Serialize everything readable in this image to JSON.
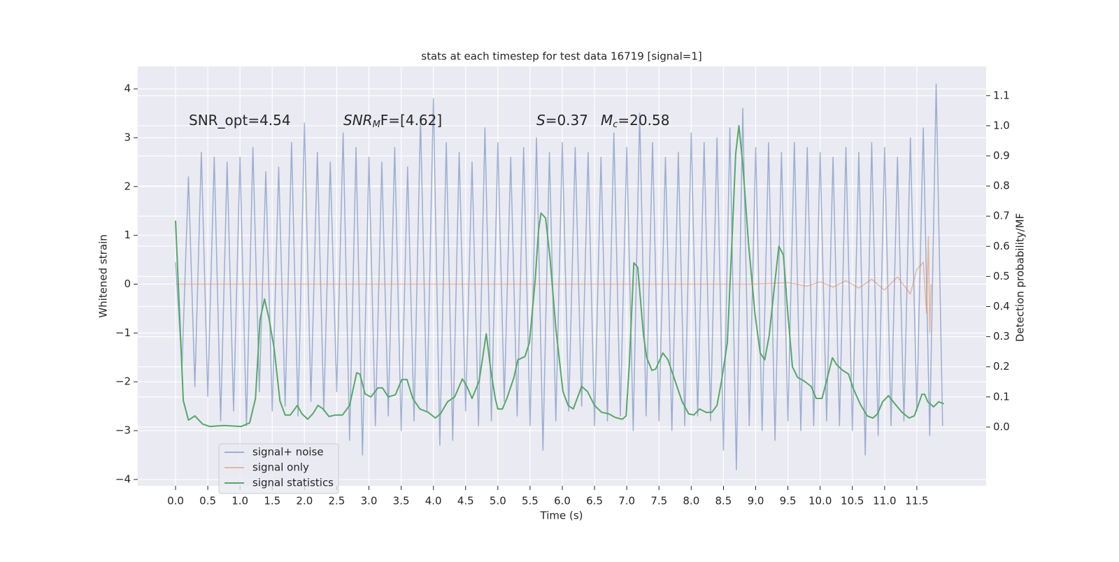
{
  "chart_data": {
    "type": "line",
    "title": "stats at each timestep for test data 16719 [signal=1]",
    "xlabel": "Time (s)",
    "ylabel": "Whitened strain",
    "y2label": "Detection probability/MF",
    "xlim": [
      -0.586,
      12.575
    ],
    "ylim": [
      -4.13,
      4.46
    ],
    "y2lim": [
      -0.195,
      1.197
    ],
    "xticks": [
      {
        "value": 0,
        "label": "0.0"
      },
      0.5,
      {
        "value": 1,
        "label": "1.0"
      },
      1.5,
      {
        "value": 2,
        "label": "2.0"
      },
      2.5,
      {
        "value": 3,
        "label": "3.0"
      },
      3.5,
      {
        "value": 4,
        "label": "4.0"
      },
      4.5,
      {
        "value": 5,
        "label": "5.0"
      },
      5.5,
      {
        "value": 6,
        "label": "6.0"
      },
      6.5,
      {
        "value": 7,
        "label": "7.0"
      },
      7.5,
      {
        "value": 8,
        "label": "8.0"
      },
      8.5,
      {
        "value": 9,
        "label": "9.0"
      },
      9.5,
      {
        "value": 10,
        "label": "10.0"
      },
      10.5,
      {
        "value": 11,
        "label": "11.0"
      },
      11.5
    ],
    "yticks": [
      {
        "value": -4,
        "label": "−4"
      },
      {
        "value": -3,
        "label": "−3"
      },
      {
        "value": -2,
        "label": "−2"
      },
      {
        "value": -1,
        "label": "−1"
      },
      0,
      1,
      2,
      3,
      4
    ],
    "y2ticks": [
      {
        "value": 0,
        "label": "0.0"
      },
      0.1,
      0.2,
      0.3,
      0.4,
      0.5,
      0.6,
      0.7,
      0.8,
      0.9,
      {
        "value": 1,
        "label": "1.0"
      },
      1.1
    ],
    "grid": true,
    "legend": "lower left",
    "annotations": [
      {
        "base": "SNR_opt=4.54",
        "italic": false
      },
      {
        "base": "SNR",
        "sub": "M",
        "rest": "F=[4.62]",
        "italic": true
      },
      {
        "base": "S",
        "rest": "=0.37",
        "italic": true
      },
      {
        "base": "M",
        "sub": "c",
        "rest": "=20.58",
        "italic": true
      }
    ],
    "series": [
      {
        "name": "signal+ noise",
        "color": "#4c72b0",
        "alpha": 0.5,
        "x": [
          0.0,
          0.1,
          0.2,
          0.3,
          0.4,
          0.5,
          0.6,
          0.7,
          0.8,
          0.9,
          1.0,
          1.1,
          1.2,
          1.3,
          1.4,
          1.5,
          1.6,
          1.7,
          1.8,
          1.9,
          2.0,
          2.1,
          2.2,
          2.3,
          2.4,
          2.5,
          2.6,
          2.7,
          2.8,
          2.9,
          3.0,
          3.1,
          3.2,
          3.3,
          3.4,
          3.5,
          3.6,
          3.7,
          3.8,
          3.9,
          4.0,
          4.1,
          4.2,
          4.3,
          4.4,
          4.5,
          4.6,
          4.7,
          4.8,
          4.9,
          5.0,
          5.1,
          5.2,
          5.3,
          5.4,
          5.5,
          5.6,
          5.7,
          5.8,
          5.9,
          6.0,
          6.1,
          6.2,
          6.3,
          6.4,
          6.5,
          6.6,
          6.7,
          6.8,
          6.9,
          7.0,
          7.1,
          7.2,
          7.3,
          7.4,
          7.5,
          7.6,
          7.7,
          7.8,
          7.9,
          8.0,
          8.1,
          8.2,
          8.3,
          8.4,
          8.5,
          8.6,
          8.7,
          8.8,
          8.9,
          9.0,
          9.1,
          9.2,
          9.3,
          9.4,
          9.5,
          9.6,
          9.7,
          9.8,
          9.9,
          10.0,
          10.1,
          10.2,
          10.3,
          10.4,
          10.5,
          10.6,
          10.7,
          10.8,
          10.9,
          11.0,
          11.1,
          11.2,
          11.3,
          11.4,
          11.5,
          11.6,
          11.7,
          11.8,
          11.9
        ],
        "values": [
          0.45,
          -1.7,
          2.2,
          -2.1,
          2.7,
          -2.3,
          2.6,
          -2.8,
          2.5,
          -2.6,
          2.6,
          -2.9,
          2.8,
          -2.2,
          2.3,
          -2.6,
          2.4,
          -2.5,
          2.9,
          -2.7,
          3.3,
          -2.4,
          2.7,
          -2.6,
          2.5,
          -2.2,
          3.1,
          -3.2,
          2.8,
          -3.5,
          2.6,
          -2.9,
          2.5,
          -2.7,
          2.8,
          -3.0,
          2.4,
          -2.8,
          3.4,
          -2.6,
          3.8,
          -3.3,
          2.9,
          -3.2,
          2.7,
          -2.6,
          2.5,
          -2.9,
          3.2,
          -2.8,
          2.9,
          -2.4,
          2.6,
          -2.7,
          2.8,
          -2.9,
          3.0,
          -3.4,
          2.7,
          -2.8,
          2.9,
          -2.6,
          2.8,
          -2.5,
          2.7,
          -2.9,
          2.6,
          -2.8,
          3.1,
          -2.7,
          2.8,
          -3.0,
          3.5,
          -2.7,
          2.9,
          -2.8,
          2.6,
          -3.0,
          2.7,
          -2.9,
          3.1,
          -2.7,
          2.9,
          -2.8,
          3.0,
          -3.4,
          3.2,
          -3.8,
          3.6,
          -2.9,
          2.8,
          -3.0,
          2.9,
          -3.2,
          2.7,
          -2.8,
          2.9,
          -3.0,
          2.8,
          -2.9,
          2.7,
          -2.8,
          2.6,
          -2.9,
          2.8,
          -3.0,
          2.7,
          -3.5,
          2.9,
          -3.1,
          2.8,
          -2.9,
          2.6,
          -2.8,
          3.0,
          -2.6,
          3.2,
          -3.1,
          4.1,
          -2.9
        ]
      },
      {
        "name": "signal only",
        "color": "#dd8452",
        "alpha": 0.5,
        "x": [
          0.0,
          9.0,
          9.5,
          9.8,
          10.0,
          10.2,
          10.4,
          10.6,
          10.8,
          11.0,
          11.2,
          11.4,
          11.5,
          11.6,
          11.65,
          11.68,
          11.7,
          11.72
        ],
        "values": [
          0,
          0,
          0.03,
          -0.04,
          0.05,
          -0.06,
          0.07,
          -0.08,
          0.1,
          -0.12,
          0.15,
          -0.2,
          0.3,
          0.45,
          -0.6,
          0.98,
          -1.0,
          0
        ]
      },
      {
        "name": "signal statistics",
        "color": "#55a868",
        "alpha": 1,
        "axis": "y2",
        "x": [
          0,
          0.12,
          0.2,
          0.3,
          0.42,
          0.53,
          0.75,
          1.02,
          1.15,
          1.24,
          1.31,
          1.38,
          1.45,
          1.53,
          1.62,
          1.7,
          1.78,
          1.89,
          1.96,
          2.05,
          2.13,
          2.21,
          2.29,
          2.38,
          2.48,
          2.59,
          2.7,
          2.81,
          2.86,
          2.94,
          3.03,
          3.14,
          3.21,
          3.3,
          3.41,
          3.51,
          3.59,
          3.68,
          3.79,
          3.92,
          4.03,
          4.11,
          4.22,
          4.33,
          4.45,
          4.52,
          4.6,
          4.71,
          4.82,
          4.89,
          4.96,
          5.0,
          5.07,
          5.14,
          5.25,
          5.31,
          5.42,
          5.49,
          5.58,
          5.63,
          5.67,
          5.74,
          5.81,
          5.9,
          6.01,
          6.09,
          6.17,
          6.3,
          6.39,
          6.5,
          6.61,
          6.72,
          6.82,
          6.93,
          6.99,
          7.04,
          7.11,
          7.17,
          7.26,
          7.31,
          7.39,
          7.45,
          7.56,
          7.64,
          7.75,
          7.86,
          7.96,
          8.04,
          8.13,
          8.23,
          8.32,
          8.4,
          8.47,
          8.56,
          8.63,
          8.69,
          8.74,
          8.8,
          8.89,
          8.99,
          9.07,
          9.14,
          9.21,
          9.29,
          9.36,
          9.43,
          9.5,
          9.57,
          9.65,
          9.75,
          9.86,
          9.94,
          10.03,
          10.1,
          10.19,
          10.26,
          10.35,
          10.44,
          10.51,
          10.62,
          10.73,
          10.82,
          10.89,
          10.97,
          11.06,
          11.16,
          11.27,
          11.38,
          11.46,
          11.52,
          11.58,
          11.62,
          11.67,
          11.76,
          11.84,
          11.92
        ],
        "values": [
          0.685,
          0.088,
          0.023,
          0.037,
          0.01,
          0.002,
          0.005,
          0.002,
          0.014,
          0.095,
          0.355,
          0.425,
          0.36,
          0.26,
          0.086,
          0.04,
          0.04,
          0.072,
          0.044,
          0.026,
          0.044,
          0.072,
          0.06,
          0.035,
          0.04,
          0.04,
          0.072,
          0.18,
          0.176,
          0.11,
          0.1,
          0.13,
          0.13,
          0.1,
          0.107,
          0.158,
          0.158,
          0.095,
          0.06,
          0.049,
          0.03,
          0.044,
          0.084,
          0.1,
          0.16,
          0.135,
          0.095,
          0.153,
          0.31,
          0.19,
          0.095,
          0.06,
          0.06,
          0.095,
          0.165,
          0.223,
          0.234,
          0.28,
          0.49,
          0.65,
          0.71,
          0.694,
          0.56,
          0.327,
          0.118,
          0.072,
          0.06,
          0.135,
          0.118,
          0.072,
          0.049,
          0.044,
          0.032,
          0.026,
          0.037,
          0.21,
          0.545,
          0.53,
          0.304,
          0.23,
          0.188,
          0.193,
          0.246,
          0.223,
          0.153,
          0.084,
          0.044,
          0.04,
          0.06,
          0.049,
          0.049,
          0.072,
          0.153,
          0.28,
          0.606,
          0.907,
          1.0,
          0.872,
          0.606,
          0.374,
          0.246,
          0.223,
          0.304,
          0.466,
          0.6,
          0.571,
          0.374,
          0.2,
          0.165,
          0.153,
          0.135,
          0.095,
          0.095,
          0.153,
          0.23,
          0.206,
          0.188,
          0.176,
          0.13,
          0.077,
          0.037,
          0.03,
          0.044,
          0.084,
          0.104,
          0.077,
          0.049,
          0.03,
          0.037,
          0.072,
          0.109,
          0.109,
          0.084,
          0.067,
          0.084,
          0.077
        ]
      }
    ]
  }
}
